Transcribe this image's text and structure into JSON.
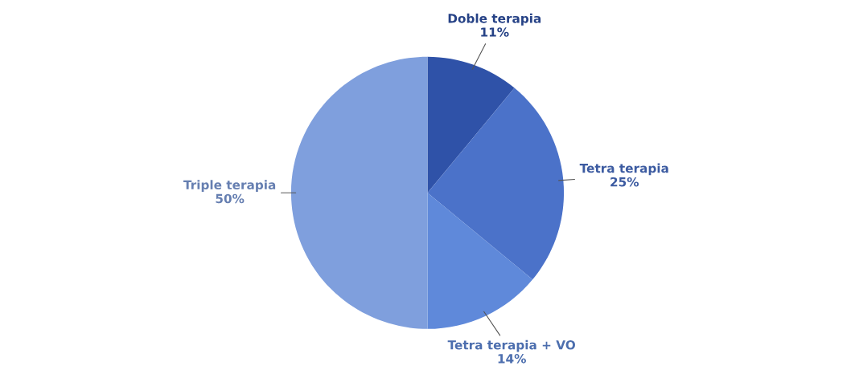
{
  "chart_data": {
    "type": "pie",
    "categories": [
      "Doble terapia",
      "Tetra terapia",
      "Tetra terapia + VO",
      "Triple terapia"
    ],
    "values": [
      11,
      25,
      14,
      50
    ],
    "value_labels": [
      "11%",
      "25%",
      "14%",
      "50%"
    ],
    "colors": [
      "#2f52a8",
      "#4b72c9",
      "#5f89da",
      "#7f9fdd"
    ],
    "legend": false
  }
}
